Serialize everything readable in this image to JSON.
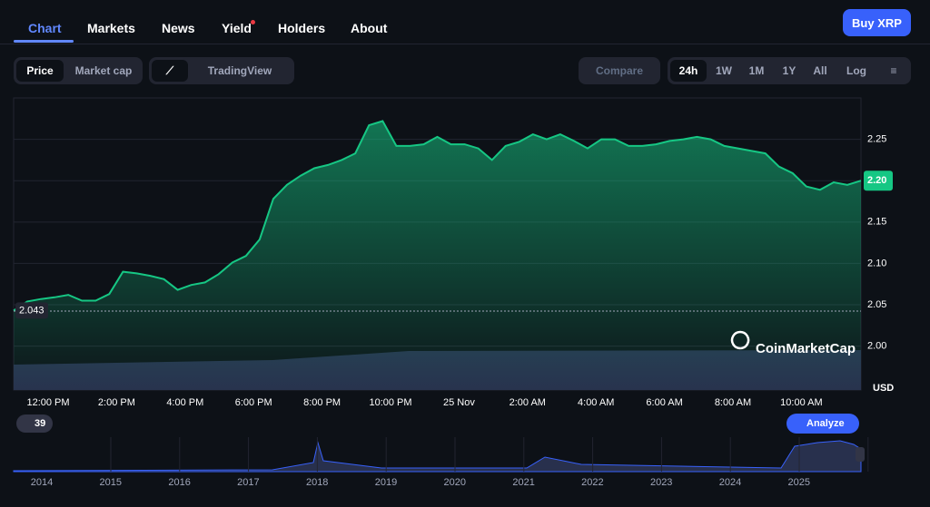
{
  "nav": {
    "tabs": [
      "Chart",
      "Markets",
      "News",
      "Yield",
      "Holders",
      "About"
    ],
    "button": "Buy XRP"
  },
  "toolbar": {
    "metric": [
      "Price",
      "Market cap"
    ],
    "tradingview": "TradingView",
    "compare": "Compare",
    "ranges": [
      "24h",
      "1W",
      "1M",
      "1Y",
      "All"
    ],
    "log": "Log"
  },
  "chart_data": {
    "type": "line",
    "color": "#16c784",
    "values": [
      2.043,
      2.054,
      2.057,
      2.059,
      2.062,
      2.055,
      2.055,
      2.063,
      2.09,
      2.088,
      2.085,
      2.081,
      2.068,
      2.074,
      2.077,
      2.087,
      2.101,
      2.109,
      2.129,
      2.178,
      2.195,
      2.206,
      2.215,
      2.219,
      2.225,
      2.233,
      2.267,
      2.272,
      2.242,
      2.242,
      2.244,
      2.253,
      2.244,
      2.244,
      2.239,
      2.225,
      2.242,
      2.247,
      2.256,
      2.25,
      2.256,
      2.248,
      2.239,
      2.25,
      2.25,
      2.242,
      2.242,
      2.244,
      2.248,
      2.25,
      2.253,
      2.25,
      2.242,
      2.239,
      2.236,
      2.233,
      2.217,
      2.209,
      2.193,
      2.189,
      2.198,
      2.195,
      2.2
    ],
    "price_tag": "2.20",
    "xtick_labels": [
      "12:00 PM",
      "2:00 PM",
      "4:00 PM",
      "6:00 PM",
      "8:00 PM",
      "10:00 PM",
      "25 Nov",
      "2:00 AM",
      "4:00 AM",
      "6:00 AM",
      "8:00 AM",
      "10:00 AM"
    ],
    "ylim": [
      1.947,
      2.3
    ],
    "yticks": [
      {
        "value": 2,
        "label": "2.00"
      },
      2.05,
      {
        "value": 2.1,
        "label": "2.10"
      },
      2.15,
      {
        "value": 2.2,
        "label": "2.20"
      },
      2.25
    ],
    "y_unit": "USD",
    "grid": true,
    "watermark": "CoinMarketCap"
  },
  "navigator": {
    "years": [
      "2014",
      "2015",
      "2016",
      "2017",
      "2018",
      "2019",
      "2020",
      "2021",
      "2022",
      "2023",
      "2024",
      "2025"
    ],
    "badge": "39",
    "analyze": "Analyze"
  }
}
